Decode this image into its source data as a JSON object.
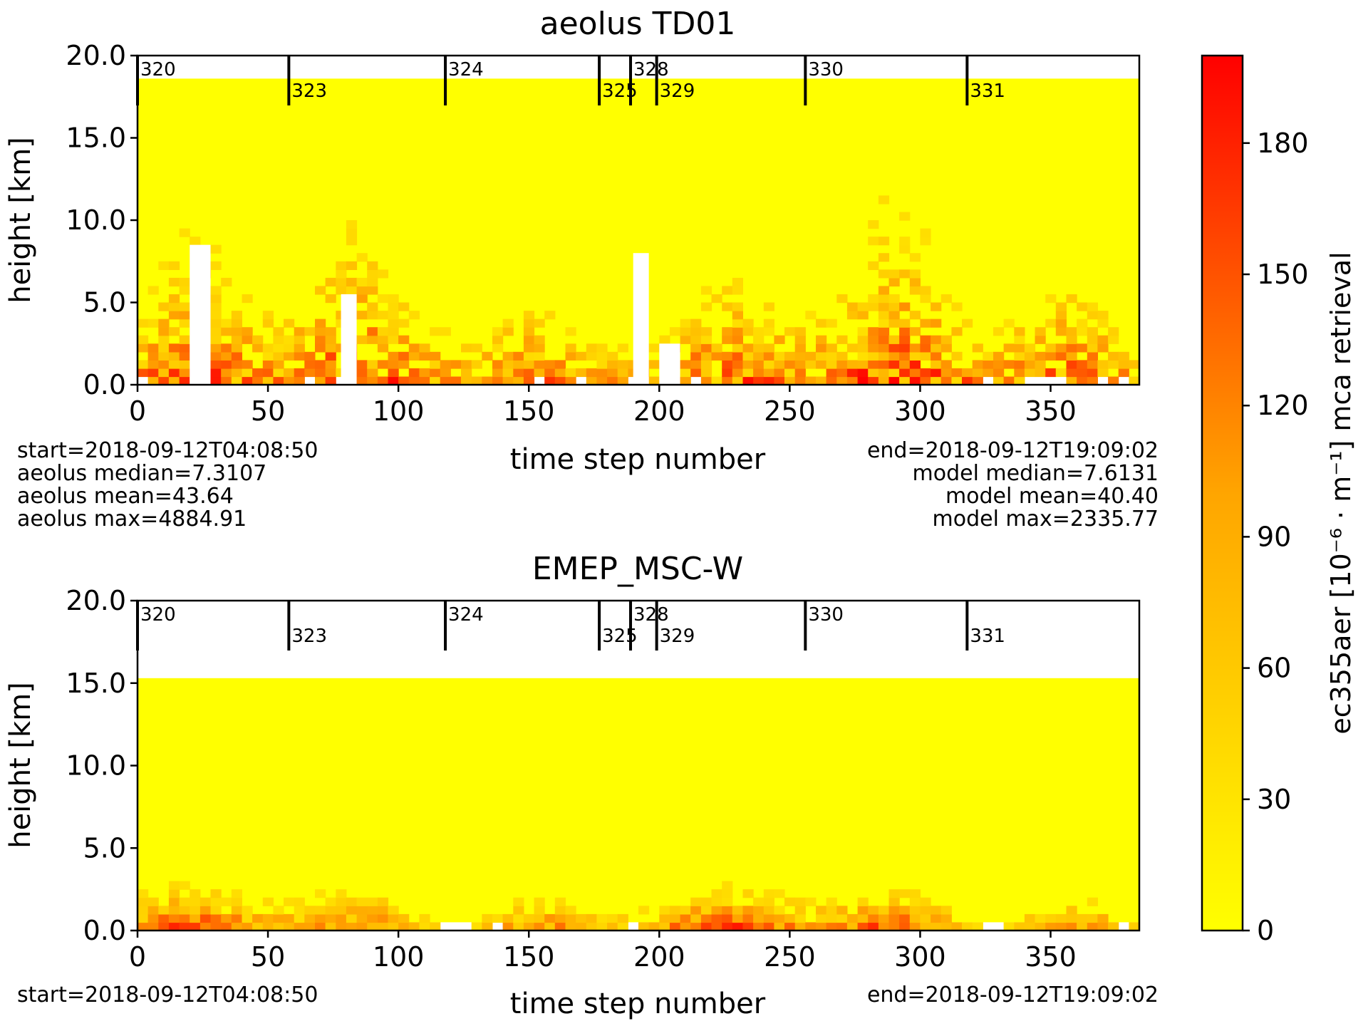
{
  "colors": {
    "low": "#ffff00",
    "high": "#ff0000",
    "axis": "#000000",
    "background": "#ffffff"
  },
  "colorbar": {
    "label": "ec355aer [10⁻⁶ · m⁻¹] mca retrieval",
    "ticks": [
      "0",
      "30",
      "60",
      "90",
      "120",
      "150",
      "180"
    ],
    "range": [
      0,
      200
    ]
  },
  "chart_data": [
    {
      "type": "heatmap",
      "title": "aeolus TD01",
      "xlabel": "time step number",
      "ylabel": "height [km]",
      "xlim": [
        0,
        384
      ],
      "ylim": [
        0.0,
        20.0
      ],
      "xticks": [
        "0",
        "50",
        "100",
        "150",
        "200",
        "250",
        "300",
        "350"
      ],
      "yticks": [
        "0.0",
        "5.0",
        "10.0",
        "15.0",
        "20.0"
      ],
      "orbit_markers": [
        {
          "x": 0,
          "label": "320"
        },
        {
          "x": 58,
          "label": "323"
        },
        {
          "x": 118,
          "label": "324"
        },
        {
          "x": 177,
          "label": "325"
        },
        {
          "x": 189,
          "label": "328"
        },
        {
          "x": 199,
          "label": "329"
        },
        {
          "x": 256,
          "label": "330"
        },
        {
          "x": 318,
          "label": "331"
        }
      ],
      "top_km": 18.6,
      "stats_left": [
        "start=2018-09-12T04:08:50",
        "aeolus median=7.3107",
        "aeolus mean=43.64",
        "aeolus max=4884.91"
      ],
      "stats_right": [
        "end=2018-09-12T19:09:02",
        "model median=7.6131",
        "model mean=40.40",
        "model max=2335.77"
      ]
    },
    {
      "type": "heatmap",
      "title": "EMEP_MSC-W",
      "xlabel": "time step number",
      "ylabel": "height [km]",
      "xlim": [
        0,
        384
      ],
      "ylim": [
        0.0,
        20.0
      ],
      "xticks": [
        "0",
        "50",
        "100",
        "150",
        "200",
        "250",
        "300",
        "350"
      ],
      "yticks": [
        "0.0",
        "5.0",
        "10.0",
        "15.0",
        "20.0"
      ],
      "orbit_markers": [
        {
          "x": 0,
          "label": "320"
        },
        {
          "x": 58,
          "label": "323"
        },
        {
          "x": 118,
          "label": "324"
        },
        {
          "x": 177,
          "label": "325"
        },
        {
          "x": 189,
          "label": "328"
        },
        {
          "x": 199,
          "label": "329"
        },
        {
          "x": 256,
          "label": "330"
        },
        {
          "x": 318,
          "label": "331"
        }
      ],
      "top_km": 15.3,
      "stats_left": [
        "start=2018-09-12T04:08:50"
      ],
      "stats_right": [
        "end=2018-09-12T19:09:02"
      ]
    }
  ]
}
